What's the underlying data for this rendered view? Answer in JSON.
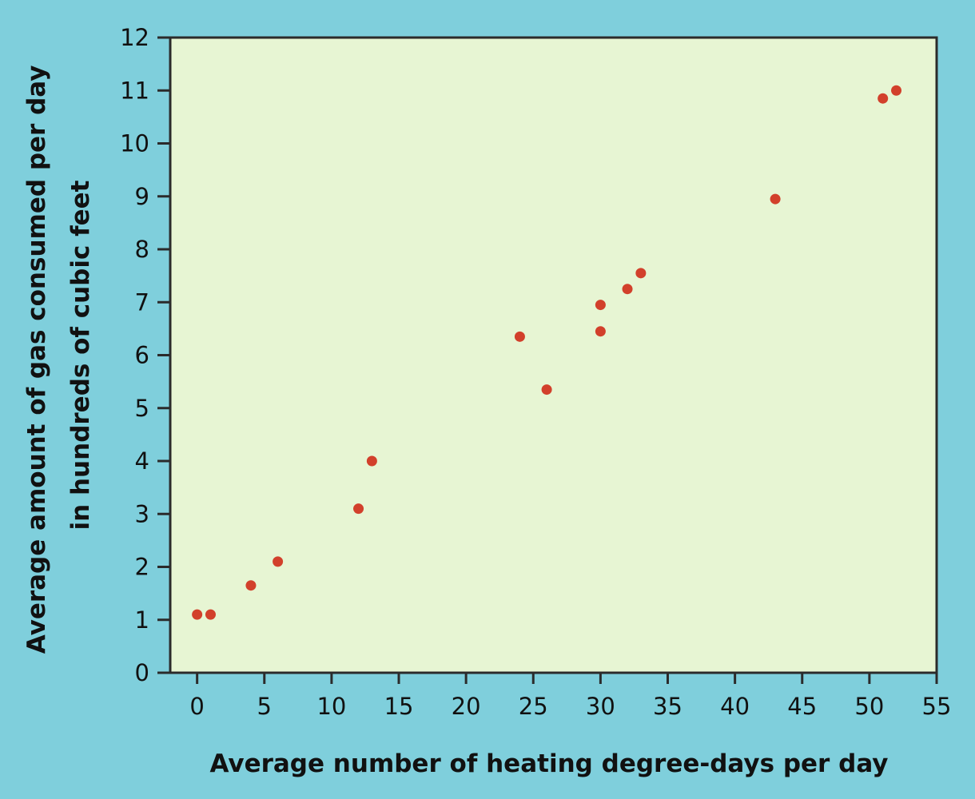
{
  "colors": {
    "background": "#7fcfdc",
    "plot_area": "#e7f5d3",
    "axis": "#2b2b2b",
    "point": "#d2402b"
  },
  "chart_data": {
    "type": "scatter",
    "xlabel": "Average number of heating degree-days per day",
    "ylabel": [
      "Average amount of gas consumed per day",
      "in hundreds of cubic feet"
    ],
    "xlim": [
      -2,
      55
    ],
    "ylim": [
      0,
      12
    ],
    "xticks": [
      0,
      5,
      10,
      15,
      20,
      25,
      30,
      35,
      40,
      45,
      50,
      55
    ],
    "yticks": [
      0,
      1,
      2,
      3,
      4,
      5,
      6,
      7,
      8,
      9,
      10,
      11,
      12
    ],
    "grid": false,
    "points": [
      {
        "x": 0,
        "y": 1.1
      },
      {
        "x": 1,
        "y": 1.1
      },
      {
        "x": 4,
        "y": 1.65
      },
      {
        "x": 6,
        "y": 2.1
      },
      {
        "x": 12,
        "y": 3.1
      },
      {
        "x": 13,
        "y": 4.0
      },
      {
        "x": 24,
        "y": 6.35
      },
      {
        "x": 26,
        "y": 5.35
      },
      {
        "x": 30,
        "y": 6.45
      },
      {
        "x": 30,
        "y": 6.95
      },
      {
        "x": 32,
        "y": 7.25
      },
      {
        "x": 33,
        "y": 7.55
      },
      {
        "x": 43,
        "y": 8.95
      },
      {
        "x": 51,
        "y": 10.85
      },
      {
        "x": 52,
        "y": 11.0
      }
    ]
  }
}
